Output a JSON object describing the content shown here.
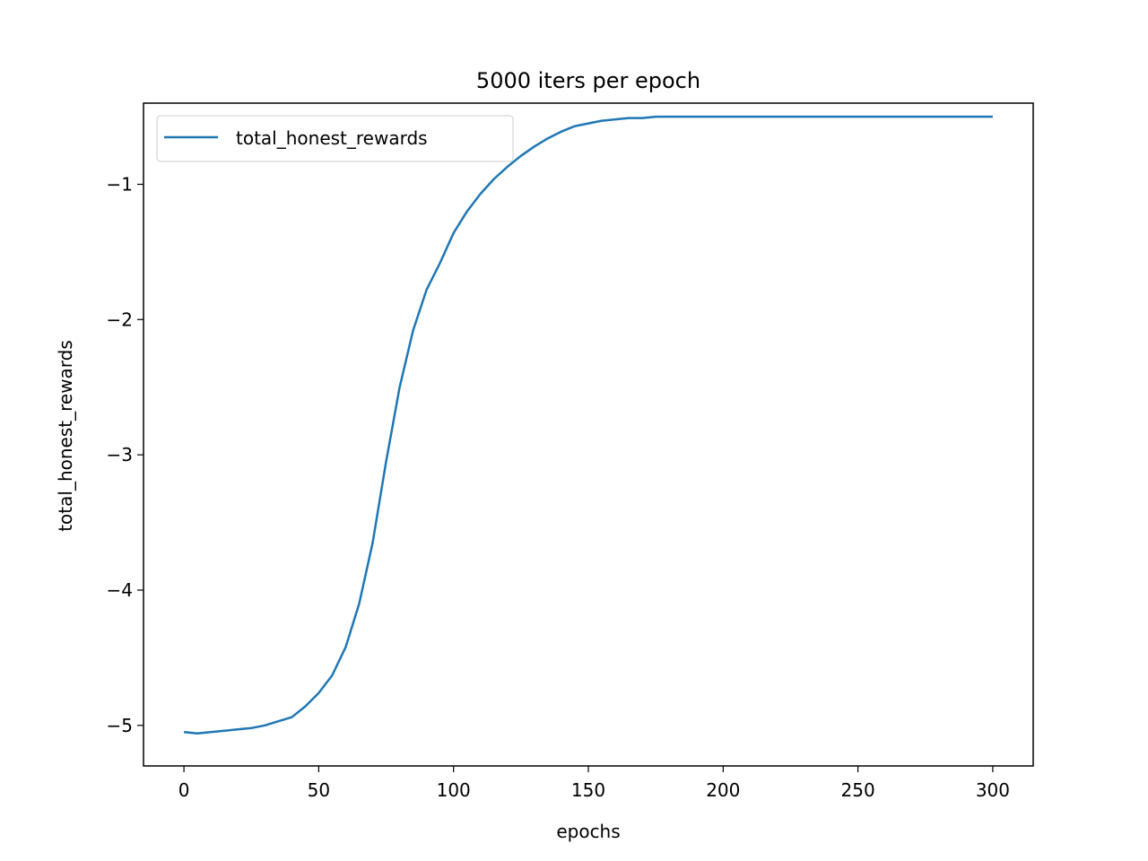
{
  "chart_data": {
    "type": "line",
    "title": "5000 iters per epoch",
    "xlabel": "epochs",
    "ylabel": "total_honest_rewards",
    "xlim": [
      -15,
      315
    ],
    "ylim": [
      -5.3,
      -0.4
    ],
    "xticks": [
      0,
      50,
      100,
      150,
      200,
      250,
      300
    ],
    "yticks": [
      -5,
      -4,
      -3,
      -2,
      -1
    ],
    "xtick_labels": [
      "0",
      "50",
      "100",
      "150",
      "200",
      "250",
      "300"
    ],
    "ytick_labels": [
      "−5",
      "−4",
      "−3",
      "−2",
      "−1"
    ],
    "grid": false,
    "legend": {
      "position": "top-left",
      "entries": [
        "total_honest_rewards"
      ]
    },
    "series": [
      {
        "name": "total_honest_rewards",
        "color": "#1f77b4",
        "x": [
          0,
          5,
          10,
          15,
          20,
          25,
          30,
          35,
          40,
          45,
          50,
          55,
          60,
          65,
          70,
          75,
          80,
          85,
          90,
          95,
          100,
          105,
          110,
          115,
          120,
          125,
          130,
          135,
          140,
          145,
          150,
          155,
          160,
          165,
          170,
          175,
          180,
          185,
          190,
          195,
          200,
          210,
          220,
          230,
          240,
          250,
          260,
          270,
          280,
          290,
          300
        ],
        "y": [
          -5.05,
          -5.06,
          -5.05,
          -5.04,
          -5.03,
          -5.02,
          -5.0,
          -4.97,
          -4.94,
          -4.86,
          -4.76,
          -4.63,
          -4.42,
          -4.1,
          -3.65,
          -3.05,
          -2.5,
          -2.08,
          -1.78,
          -1.58,
          -1.36,
          -1.2,
          -1.07,
          -0.96,
          -0.87,
          -0.79,
          -0.72,
          -0.66,
          -0.61,
          -0.57,
          -0.55,
          -0.53,
          -0.52,
          -0.51,
          -0.51,
          -0.5,
          -0.5,
          -0.5,
          -0.5,
          -0.5,
          -0.5,
          -0.5,
          -0.5,
          -0.5,
          -0.5,
          -0.5,
          -0.5,
          -0.5,
          -0.5,
          -0.5,
          -0.5
        ]
      }
    ]
  }
}
